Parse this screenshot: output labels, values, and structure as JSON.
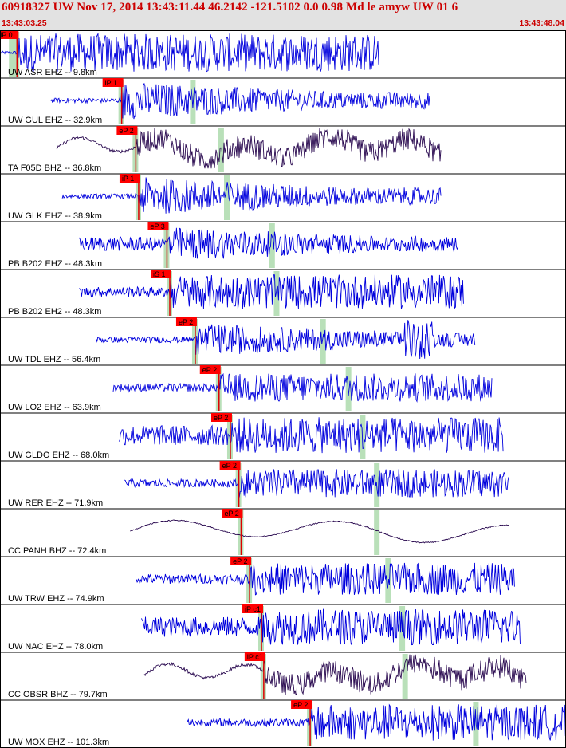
{
  "header": {
    "title": "60918327 UW Nov 17, 2014 13:43:11.44   46.2142 -121.5102  0.0 0.98 Md le amyw UW 01   6",
    "start_time": "13:43:03.25",
    "end_time": "13:43:48.04"
  },
  "colors": {
    "header_bg": "#e2e2e2",
    "header_text": "#cc0000",
    "pick_box": "#ff0000",
    "pick_line": "#dd0000",
    "theoretical_band": "#b9e0b9",
    "trace_blue": "#0000dd",
    "trace_dark": "#2a0a50",
    "separator": "#000000"
  },
  "traces": [
    {
      "label": "UW ASR EHZ -- 9.8km",
      "pick": "iP 0",
      "p": 0.03,
      "s": 0.02,
      "start": 0.0,
      "end": 0.67,
      "amp": 0.95,
      "noise": 0.08,
      "color": "blue",
      "mode": "noise",
      "decay": false,
      "burst": 0.0
    },
    {
      "label": "UW GUL EHZ -- 32.9km",
      "pick": "iP 1",
      "p": 0.215,
      "s": 0.34,
      "start": 0.09,
      "end": 0.76,
      "amp": 0.95,
      "noise": 0.12,
      "color": "blue",
      "mode": "noise",
      "decay": true,
      "burst": 0.0
    },
    {
      "label": "TA F05D BHZ -- 36.8km",
      "pick": "eP 2",
      "p": 0.24,
      "s": 0.39,
      "start": 0.1,
      "end": 0.78,
      "amp": 0.8,
      "noise": 0.18,
      "color": "dark",
      "mode": "wave",
      "decay": true,
      "burst": 0.0
    },
    {
      "label": "UW GLK EHZ -- 38.9km",
      "pick": "iP 1",
      "p": 0.245,
      "s": 0.4,
      "start": 0.11,
      "end": 0.78,
      "amp": 0.95,
      "noise": 0.12,
      "color": "blue",
      "mode": "noise",
      "decay": true,
      "burst": 0.0
    },
    {
      "label": "PB B202 EHZ -- 48.3km",
      "pick": "eP 3",
      "p": 0.295,
      "s": 0.48,
      "start": 0.14,
      "end": 0.81,
      "amp": 0.85,
      "noise": 0.35,
      "color": "blue",
      "mode": "noise",
      "decay": true,
      "burst": 0.0
    },
    {
      "label": "PB B202 EH2 -- 48.3km",
      "pick": "iS 1",
      "p": 0.3,
      "s": 0.488,
      "start": 0.14,
      "end": 0.82,
      "amp": 0.85,
      "noise": 0.25,
      "color": "blue",
      "mode": "noise",
      "decay": false,
      "burst": 0.0
    },
    {
      "label": "UW TDL EHZ -- 56.4km",
      "pick": "eP 2",
      "p": 0.345,
      "s": 0.57,
      "start": 0.17,
      "end": 0.84,
      "amp": 0.8,
      "noise": 0.15,
      "color": "blue",
      "mode": "noise",
      "decay": true,
      "burst": 0.74
    },
    {
      "label": "UW LO2 EHZ -- 63.9km",
      "pick": "eP 2",
      "p": 0.387,
      "s": 0.615,
      "start": 0.2,
      "end": 0.87,
      "amp": 0.7,
      "noise": 0.2,
      "color": "blue",
      "mode": "noise",
      "decay": false,
      "burst": 0.0
    },
    {
      "label": "UW GLDO EHZ -- 68.0km",
      "pick": "eP 2",
      "p": 0.407,
      "s": 0.64,
      "start": 0.21,
      "end": 0.89,
      "amp": 0.9,
      "noise": 0.5,
      "color": "blue",
      "mode": "noise",
      "decay": false,
      "burst": 0.0
    },
    {
      "label": "UW RER EHZ -- 71.9km",
      "pick": "eP 2",
      "p": 0.422,
      "s": 0.665,
      "start": 0.22,
      "end": 0.9,
      "amp": 0.7,
      "noise": 0.2,
      "color": "blue",
      "mode": "noise",
      "decay": false,
      "burst": 0.0
    },
    {
      "label": "CC PANH BHZ -- 72.4km",
      "pick": "eP 2",
      "p": 0.426,
      "s": 0.665,
      "start": 0.23,
      "end": 0.9,
      "amp": 0.55,
      "noise": 0.05,
      "color": "dark",
      "mode": "smooth",
      "decay": false,
      "burst": 0.0
    },
    {
      "label": "UW TRW EHZ -- 74.9km",
      "pick": "eP 2",
      "p": 0.441,
      "s": 0.685,
      "start": 0.24,
      "end": 0.91,
      "amp": 0.8,
      "noise": 0.25,
      "color": "blue",
      "mode": "noise",
      "decay": false,
      "burst": 0.0
    },
    {
      "label": "UW NAC EHZ -- 78.0km",
      "pick": "iP c1",
      "p": 0.462,
      "s": 0.71,
      "start": 0.25,
      "end": 0.92,
      "amp": 0.9,
      "noise": 0.5,
      "color": "blue",
      "mode": "noise",
      "decay": false,
      "burst": 0.0
    },
    {
      "label": "CC OBSR BHZ -- 79.7km",
      "pick": "iP c1",
      "p": 0.466,
      "s": 0.715,
      "start": 0.255,
      "end": 0.93,
      "amp": 0.8,
      "noise": 0.2,
      "color": "dark",
      "mode": "wave",
      "decay": false,
      "burst": 0.0
    },
    {
      "label": "UW MOX EHZ -- 101.3km",
      "pick": "eP 2",
      "p": 0.548,
      "s": 0.84,
      "start": 0.33,
      "end": 1.0,
      "amp": 0.9,
      "noise": 0.2,
      "color": "blue",
      "mode": "noise",
      "decay": false,
      "burst": 0.0
    }
  ]
}
